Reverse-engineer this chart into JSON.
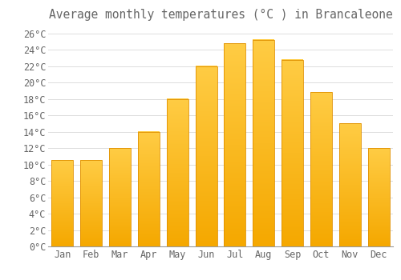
{
  "title": "Average monthly temperatures (°C ) in Brancaleone",
  "months": [
    "Jan",
    "Feb",
    "Mar",
    "Apr",
    "May",
    "Jun",
    "Jul",
    "Aug",
    "Sep",
    "Oct",
    "Nov",
    "Dec"
  ],
  "values": [
    10.5,
    10.5,
    12.0,
    14.0,
    18.0,
    22.0,
    24.8,
    25.2,
    22.8,
    18.8,
    15.0,
    12.0
  ],
  "bar_color_top": "#FFCC44",
  "bar_color_bottom": "#F5A800",
  "bar_edge_color": "#E09000",
  "background_color": "#FFFFFF",
  "grid_color": "#DDDDDD",
  "text_color": "#666666",
  "ylim": [
    0,
    27
  ],
  "yticks": [
    0,
    2,
    4,
    6,
    8,
    10,
    12,
    14,
    16,
    18,
    20,
    22,
    24,
    26
  ],
  "title_fontsize": 10.5,
  "tick_fontsize": 8.5,
  "bar_width": 0.75
}
